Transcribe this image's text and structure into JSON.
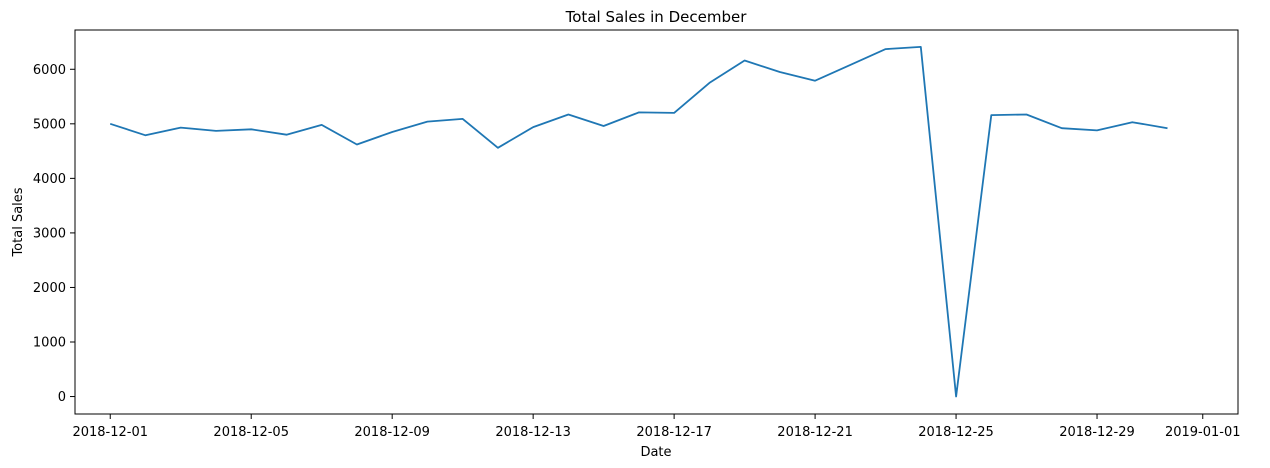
{
  "chart_data": {
    "type": "line",
    "title": "Total Sales in December",
    "xlabel": "Date",
    "ylabel": "Total Sales",
    "x_ticks": [
      "2018-12-01",
      "2018-12-05",
      "2018-12-09",
      "2018-12-13",
      "2018-12-17",
      "2018-12-21",
      "2018-12-25",
      "2018-12-29",
      "2019-01-01"
    ],
    "y_ticks": [
      0,
      1000,
      2000,
      3000,
      4000,
      5000,
      6000
    ],
    "xlim": [
      "2018-11-30",
      "2019-01-02"
    ],
    "ylim": [
      -320,
      6720
    ],
    "grid": false,
    "line_color": "#1f77b4",
    "series": [
      {
        "x": [
          "2018-12-01",
          "2018-12-02",
          "2018-12-03",
          "2018-12-04",
          "2018-12-05",
          "2018-12-06",
          "2018-12-07",
          "2018-12-08",
          "2018-12-09",
          "2018-12-10",
          "2018-12-11",
          "2018-12-12",
          "2018-12-13",
          "2018-12-14",
          "2018-12-15",
          "2018-12-16",
          "2018-12-17",
          "2018-12-18",
          "2018-12-19",
          "2018-12-20",
          "2018-12-21",
          "2018-12-22",
          "2018-12-23",
          "2018-12-24",
          "2018-12-25",
          "2018-12-26",
          "2018-12-27",
          "2018-12-28",
          "2018-12-29",
          "2018-12-30",
          "2018-12-31"
        ],
        "values": [
          5000,
          4790,
          4930,
          4870,
          4900,
          4800,
          4980,
          4620,
          4850,
          5040,
          5090,
          4560,
          4940,
          5170,
          4960,
          5210,
          5200,
          5750,
          6160,
          5950,
          5790,
          6080,
          6370,
          6410,
          0,
          5160,
          5170,
          4920,
          4880,
          5030,
          4920
        ]
      }
    ]
  }
}
